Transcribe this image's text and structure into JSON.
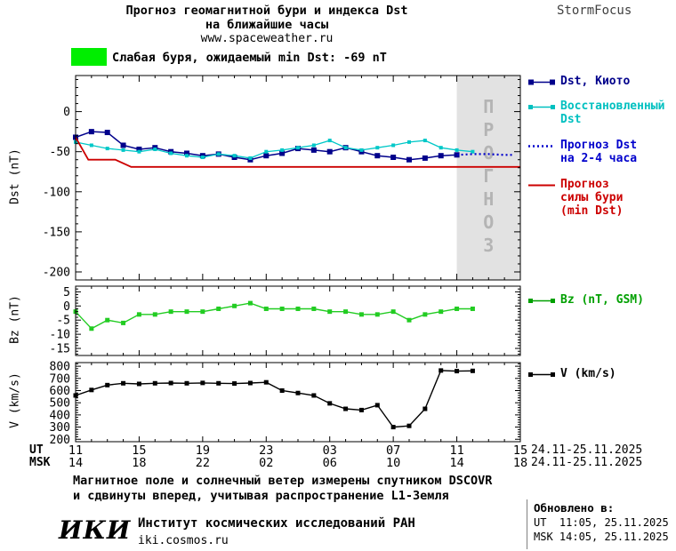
{
  "header": {
    "title_line1": "Прогноз геомагнитной бури и индекса Dst",
    "title_line2": "на ближайшие часы",
    "website": "www.spaceweather.ru",
    "brand": "StormFocus"
  },
  "storm_banner": {
    "text": "Слабая буря, ожидаемый min Dst: -69 nT",
    "swatch_color": "#00ee00"
  },
  "legend": {
    "items": [
      {
        "label": "Dst, Киото",
        "color": "#00008b"
      },
      {
        "label": "Восстановленный\nDst",
        "color": "#00c0c0"
      },
      {
        "label": "Прогноз Dst\nна 2-4 часа",
        "color": "#0000cc"
      },
      {
        "label": "Прогноз\nсилы бури\n(min Dst)",
        "color": "#cc0000"
      },
      {
        "label": "Bz (nT, GSM)",
        "color": "#00a000"
      },
      {
        "label": "V (km/s)",
        "color": "#000000"
      }
    ]
  },
  "xaxis": {
    "ut_label": "UT",
    "msk_label": "MSK",
    "tick_hours": [
      0,
      4,
      8,
      12,
      16,
      20,
      24,
      28
    ],
    "ut_ticks": [
      "11",
      "15",
      "19",
      "23",
      "03",
      "07",
      "11",
      "15"
    ],
    "msk_ticks": [
      "14",
      "18",
      "22",
      "02",
      "06",
      "10",
      "14",
      "18"
    ],
    "ut_date_range": "24.11-25.11.2025",
    "msk_date_range": "24.11-25.11.2025"
  },
  "chart_data": [
    {
      "id": "dst",
      "type": "line",
      "ylabel": "Dst (nT)",
      "ylim": [
        -210,
        45
      ],
      "yticks": [
        0,
        -50,
        -100,
        -150,
        -200
      ],
      "xlim": [
        0,
        28
      ],
      "xticks_hours": [
        0,
        4,
        8,
        12,
        16,
        20,
        24,
        28
      ],
      "forecast_region": {
        "from": 24,
        "to": 28,
        "label": "ПРОГНОЗ"
      },
      "series": [
        {
          "id": "dst-kyoto",
          "name": "Dst, Киото",
          "color": "#00008b",
          "marker": true,
          "msize": 6,
          "width": 1.5,
          "x": [
            0,
            1,
            2,
            3,
            4,
            5,
            6,
            7,
            8,
            9,
            10,
            11,
            12,
            13,
            14,
            15,
            16,
            17,
            18,
            19,
            20,
            21,
            22,
            23,
            24
          ],
          "y": [
            -32,
            -25,
            -26,
            -42,
            -47,
            -45,
            -50,
            -52,
            -55,
            -53,
            -57,
            -60,
            -55,
            -52,
            -46,
            -48,
            -50,
            -45,
            -50,
            -55,
            -57,
            -60,
            -58,
            -55,
            -54
          ]
        },
        {
          "id": "dst-restored",
          "name": "Восстановленный Dst",
          "color": "#00c8c8",
          "marker": true,
          "msize": 4,
          "width": 1.3,
          "x": [
            0,
            1,
            2,
            3,
            4,
            5,
            6,
            7,
            8,
            9,
            10,
            11,
            12,
            13,
            14,
            15,
            16,
            17,
            18,
            19,
            20,
            21,
            22,
            23,
            24,
            25
          ],
          "y": [
            -38,
            -42,
            -46,
            -48,
            -50,
            -47,
            -52,
            -55,
            -57,
            -53,
            -55,
            -58,
            -50,
            -48,
            -45,
            -42,
            -36,
            -45,
            -48,
            -45,
            -42,
            -38,
            -36,
            -45,
            -48,
            -50
          ]
        },
        {
          "id": "dst-forecast",
          "name": "Прогноз Dst на 2-4 часа",
          "color": "#0000cc",
          "dashed": true,
          "width": 2.2,
          "x": [
            24,
            25,
            26,
            27,
            27.6
          ],
          "y": [
            -54,
            -53,
            -53,
            -54,
            -54
          ]
        },
        {
          "id": "storm-forecast",
          "name": "Прогноз силы бури (min Dst)",
          "color": "#cc0000",
          "width": 1.8,
          "x": [
            0,
            0.8,
            2.5,
            3.5,
            28
          ],
          "y": [
            -32,
            -60,
            -60,
            -69,
            -69
          ]
        }
      ]
    },
    {
      "id": "bz",
      "type": "line",
      "ylabel": "Bz (nT)",
      "ylim": [
        -17.5,
        7
      ],
      "yticks": [
        5,
        0,
        -5,
        -10,
        -15
      ],
      "xlim": [
        0,
        28
      ],
      "xticks_hours": [
        0,
        4,
        8,
        12,
        16,
        20,
        24,
        28
      ],
      "series": [
        {
          "id": "bz-gsm",
          "name": "Bz (nT, GSM)",
          "color": "#22cc22",
          "marker": true,
          "msize": 5,
          "width": 1.4,
          "x": [
            0,
            1,
            2,
            3,
            4,
            5,
            6,
            7,
            8,
            9,
            10,
            11,
            12,
            13,
            14,
            15,
            16,
            17,
            18,
            19,
            20,
            21,
            22,
            23,
            24,
            25
          ],
          "y": [
            -2,
            -8,
            -5,
            -6,
            -3,
            -3,
            -2,
            -2,
            -2,
            -1,
            0,
            1,
            -1,
            -1,
            -1,
            -1,
            -2,
            -2,
            -3,
            -3,
            -2,
            -5,
            -3,
            -2,
            -1,
            -1
          ]
        }
      ]
    },
    {
      "id": "v",
      "type": "line",
      "ylabel": "V (km/s)",
      "ylim": [
        180,
        830
      ],
      "yticks": [
        800,
        700,
        600,
        500,
        400,
        300,
        200
      ],
      "xlim": [
        0,
        28
      ],
      "xticks_hours": [
        0,
        4,
        8,
        12,
        16,
        20,
        24,
        28
      ],
      "series": [
        {
          "id": "v-sw",
          "name": "V (km/s)",
          "color": "#000000",
          "marker": true,
          "msize": 5,
          "width": 1.4,
          "x": [
            0,
            1,
            2,
            3,
            4,
            5,
            6,
            7,
            8,
            9,
            10,
            11,
            12,
            13,
            14,
            15,
            16,
            17,
            18,
            19,
            20,
            21,
            22,
            23,
            24,
            25
          ],
          "y": [
            560,
            605,
            645,
            660,
            655,
            660,
            662,
            660,
            663,
            660,
            658,
            662,
            668,
            600,
            580,
            560,
            495,
            450,
            440,
            480,
            300,
            310,
            450,
            765,
            760,
            762
          ]
        }
      ]
    }
  ],
  "footer": {
    "note_line1": "Магнитное поле и солнечный ветер измерены спутником DSCOVR",
    "note_line2": "и сдвинуты вперед, учитывая распространение L1-Земля",
    "logo": "ИКИ",
    "institute": "Институт космических исследований РАН",
    "site": "iki.cosmos.ru",
    "updated_label": "Обновлено в:",
    "updated_ut": "UT  11:05, 25.11.2025",
    "updated_msk": "MSK 14:05, 25.11.2025"
  }
}
